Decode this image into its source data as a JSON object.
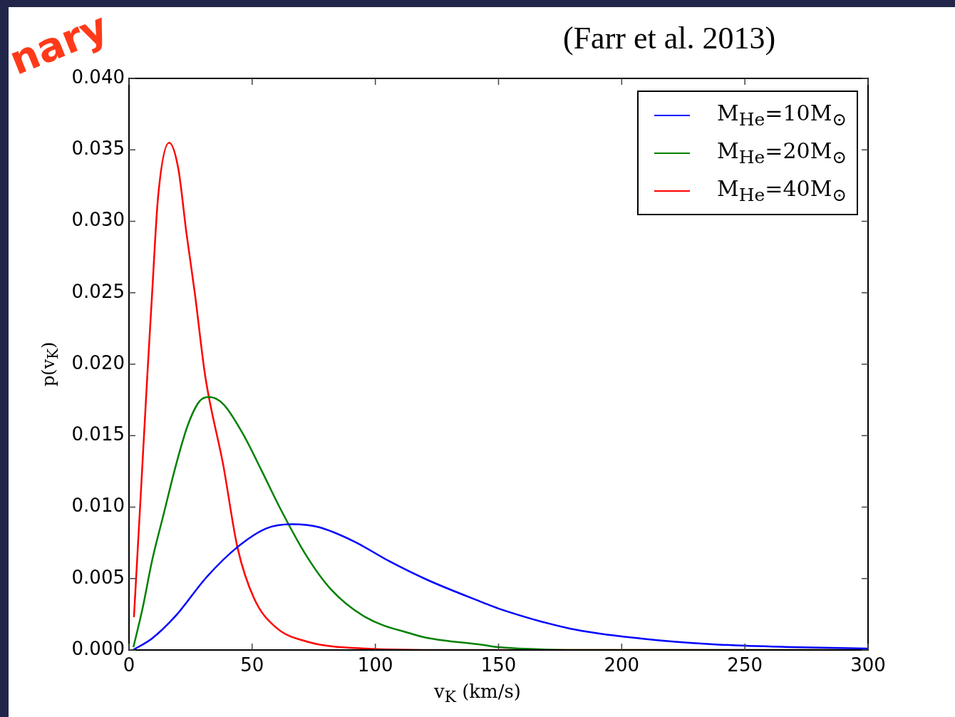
{
  "chart_data": {
    "type": "line",
    "title": "(Farr et al. 2013)",
    "xlabel": "v$_{K}$  (km/s)",
    "ylabel": "p(v$_{K}$)",
    "annotations": [
      "nary"
    ],
    "xlim": [
      0,
      300
    ],
    "xticks": [
      0,
      50,
      100,
      150,
      200,
      250,
      300
    ],
    "ylim": [
      0,
      0.04
    ],
    "yticks": [
      {
        "value": 0,
        "label": "0.000"
      },
      {
        "value": 0.005,
        "label": "0.005"
      },
      {
        "value": 0.01,
        "label": "0.010"
      },
      {
        "value": 0.015,
        "label": "0.015"
      },
      {
        "value": 0.02,
        "label": "0.020"
      },
      {
        "value": 0.025,
        "label": "0.025"
      },
      {
        "value": 0.03,
        "label": "0.030"
      },
      {
        "value": 0.035,
        "label": "0.035"
      },
      {
        "value": 0.04,
        "label": "0.040"
      }
    ],
    "grid": false,
    "legend": "top right",
    "marker": "none",
    "line_style": "solid",
    "series": [
      {
        "name": "M$_{He}$=10M$_{⊙}$",
        "color": "#0000ff",
        "x": [
          1.6,
          9.3,
          19,
          31.5,
          44,
          55.6,
          66.2,
          76.9,
          91.3,
          105.8,
          121.2,
          144,
          150,
          179,
          208,
          237,
          270,
          300
        ],
        "values": [
          0,
          0.0008,
          0.0024,
          0.0051,
          0.0072,
          0.0085,
          0.0088,
          0.0086,
          0.0076,
          0.0062,
          0.0049,
          0.0033,
          0.0029,
          0.0015,
          0.0008,
          0.0004,
          0.0002,
          0.0001
        ]
      },
      {
        "name": "M$_{He}$=20M$_{⊙}$",
        "color": "#008000",
        "x": [
          1.8,
          5.5,
          9.3,
          14.2,
          19,
          23.8,
          28.6,
          32.5,
          38.3,
          46,
          53.7,
          61.4,
          72,
          81.7,
          96,
          115.4,
          121,
          144,
          150,
          190,
          300
        ],
        "values": [
          0.0002,
          0.0029,
          0.0062,
          0.0096,
          0.0129,
          0.0157,
          0.0174,
          0.0177,
          0.0172,
          0.0152,
          0.0126,
          0.0099,
          0.0066,
          0.0043,
          0.0023,
          0.0011,
          0.00085,
          0.00035,
          0.0002,
          0,
          0
        ]
      },
      {
        "name": "M$_{He}$=40M$_{⊙}$",
        "color": "#ff0000",
        "x": [
          2,
          4.5,
          7.4,
          9.4,
          11.8,
          16.3,
          20,
          23.3,
          26.7,
          31,
          38.3,
          44,
          50.8,
          59.5,
          72,
          96,
          130,
          300
        ],
        "values": [
          0.0023,
          0.01,
          0.0191,
          0.025,
          0.0317,
          0.0355,
          0.0337,
          0.0292,
          0.025,
          0.0191,
          0.0129,
          0.0072,
          0.0036,
          0.0016,
          0.0006,
          0.0001,
          0,
          0
        ]
      }
    ]
  }
}
